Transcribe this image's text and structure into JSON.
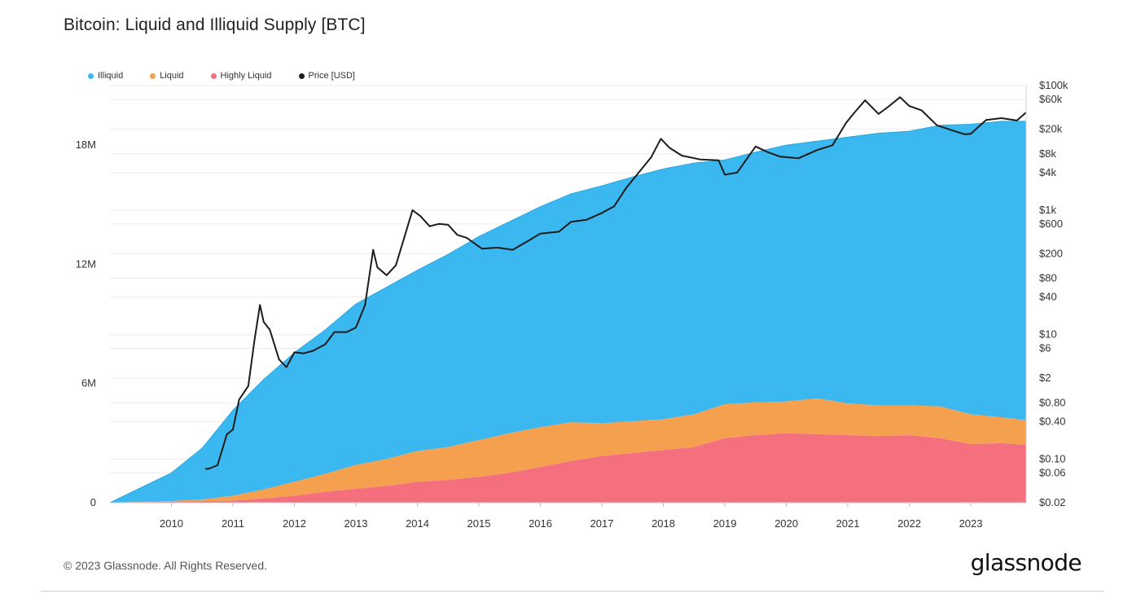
{
  "page": {
    "title": "Bitcoin: Liquid and Illiquid Supply [BTC]",
    "copyright": "© 2023 Glassnode. All Rights Reserved.",
    "brand": "glassnode"
  },
  "legend": [
    {
      "label": "Illiquid",
      "color": "#3bb8ef"
    },
    {
      "label": "Liquid",
      "color": "#f5a04f"
    },
    {
      "label": "Highly Liquid",
      "color": "#f4707f"
    },
    {
      "label": "Price [USD]",
      "color": "#1c1c1c"
    }
  ],
  "chart_data": {
    "type": "area",
    "title": "Bitcoin: Liquid and Illiquid Supply [BTC]",
    "stacked": true,
    "x_range": [
      "2009-01",
      "2023-11"
    ],
    "x_ticks": [
      "2010",
      "2011",
      "2012",
      "2013",
      "2014",
      "2015",
      "2016",
      "2017",
      "2018",
      "2019",
      "2020",
      "2021",
      "2022",
      "2023"
    ],
    "y_left": {
      "ticks": [
        "0",
        "6M",
        "12M",
        "18M"
      ],
      "tick_values": [
        0,
        6000000,
        12000000,
        18000000
      ],
      "range": [
        0,
        21000000
      ],
      "unit": "BTC"
    },
    "y_right": {
      "scale": "log",
      "ticks": [
        "$0.02",
        "$0.06",
        "$0.10",
        "$0.40",
        "$0.80",
        "$2",
        "$6",
        "$10",
        "$40",
        "$80",
        "$200",
        "$600",
        "$1k",
        "$4k",
        "$8k",
        "$20k",
        "$60k",
        "$100k"
      ],
      "tick_values": [
        0.02,
        0.06,
        0.1,
        0.4,
        0.8,
        2,
        6,
        10,
        40,
        80,
        200,
        600,
        1000,
        4000,
        8000,
        20000,
        60000,
        100000
      ],
      "range": [
        0.02,
        100000
      ],
      "unit": "USD"
    },
    "legend_position": "top-left",
    "grid": true,
    "x": [
      2009.0,
      2010.0,
      2010.5,
      2011.0,
      2011.5,
      2012.0,
      2012.5,
      2013.0,
      2013.5,
      2014.0,
      2014.5,
      2015.0,
      2015.5,
      2016.0,
      2016.5,
      2017.0,
      2017.5,
      2018.0,
      2018.5,
      2019.0,
      2019.5,
      2020.0,
      2020.5,
      2021.0,
      2021.5,
      2022.0,
      2022.5,
      2023.0,
      2023.5,
      2023.9
    ],
    "series": [
      {
        "name": "Highly Liquid",
        "color": "#f4707f",
        "axis": "left",
        "values": [
          0,
          50000,
          80000,
          100000,
          220000,
          350000,
          550000,
          700000,
          850000,
          1050000,
          1150000,
          1300000,
          1500000,
          1800000,
          2100000,
          2350000,
          2500000,
          2650000,
          2800000,
          3250000,
          3400000,
          3500000,
          3450000,
          3400000,
          3350000,
          3400000,
          3250000,
          2950000,
          3000000,
          2900000
        ]
      },
      {
        "name": "Liquid",
        "color": "#f5a04f",
        "axis": "left",
        "values": [
          0,
          30000,
          80000,
          250000,
          450000,
          700000,
          900000,
          1200000,
          1350000,
          1550000,
          1650000,
          1850000,
          2000000,
          2000000,
          1950000,
          1650000,
          1600000,
          1550000,
          1650000,
          1700000,
          1650000,
          1600000,
          1800000,
          1600000,
          1550000,
          1500000,
          1600000,
          1500000,
          1300000,
          1250000
        ]
      },
      {
        "name": "Illiquid",
        "color": "#3bb8ef",
        "axis": "left",
        "values": [
          0,
          1420000,
          2590000,
          4300000,
          5530000,
          6500000,
          7250000,
          8100000,
          8650000,
          9100000,
          9700000,
          10250000,
          10650000,
          11100000,
          11500000,
          11950000,
          12300000,
          12600000,
          12650000,
          12300000,
          12600000,
          12900000,
          12950000,
          13400000,
          13700000,
          13800000,
          14150000,
          14600000,
          14900000,
          15050000
        ]
      },
      {
        "name": "Price [USD]",
        "color": "#1c1c1c",
        "axis": "right",
        "x": [
          2010.55,
          2010.6,
          2010.75,
          2010.9,
          2011.0,
          2011.1,
          2011.25,
          2011.35,
          2011.44,
          2011.5,
          2011.6,
          2011.75,
          2011.87,
          2012.0,
          2012.15,
          2012.3,
          2012.5,
          2012.65,
          2012.85,
          2013.0,
          2013.15,
          2013.28,
          2013.35,
          2013.5,
          2013.65,
          2013.8,
          2013.92,
          2014.05,
          2014.2,
          2014.35,
          2014.5,
          2014.65,
          2014.8,
          2015.05,
          2015.3,
          2015.55,
          2015.8,
          2016.0,
          2016.3,
          2016.5,
          2016.75,
          2017.0,
          2017.2,
          2017.4,
          2017.6,
          2017.8,
          2017.96,
          2018.1,
          2018.3,
          2018.6,
          2018.9,
          2019.0,
          2019.2,
          2019.5,
          2019.7,
          2019.9,
          2020.2,
          2020.5,
          2020.75,
          2020.97,
          2021.1,
          2021.28,
          2021.5,
          2021.65,
          2021.85,
          2022.0,
          2022.2,
          2022.45,
          2022.7,
          2022.9,
          2023.0,
          2023.25,
          2023.5,
          2023.75,
          2023.9
        ],
        "values": [
          0.07,
          0.07,
          0.08,
          0.25,
          0.3,
          0.9,
          1.5,
          8,
          30,
          16,
          12,
          4,
          3,
          5.2,
          5,
          5.5,
          7,
          11,
          11,
          13,
          30,
          230,
          120,
          90,
          130,
          400,
          1000,
          800,
          550,
          600,
          580,
          400,
          360,
          240,
          250,
          230,
          320,
          420,
          450,
          650,
          700,
          900,
          1150,
          2300,
          4000,
          7000,
          14000,
          10000,
          7500,
          6500,
          6300,
          3700,
          4000,
          10500,
          8500,
          7200,
          6800,
          9200,
          11000,
          25000,
          36000,
          58000,
          35000,
          45000,
          65000,
          47000,
          40000,
          23000,
          19000,
          16500,
          16800,
          28000,
          30000,
          27500,
          37000
        ]
      }
    ]
  }
}
